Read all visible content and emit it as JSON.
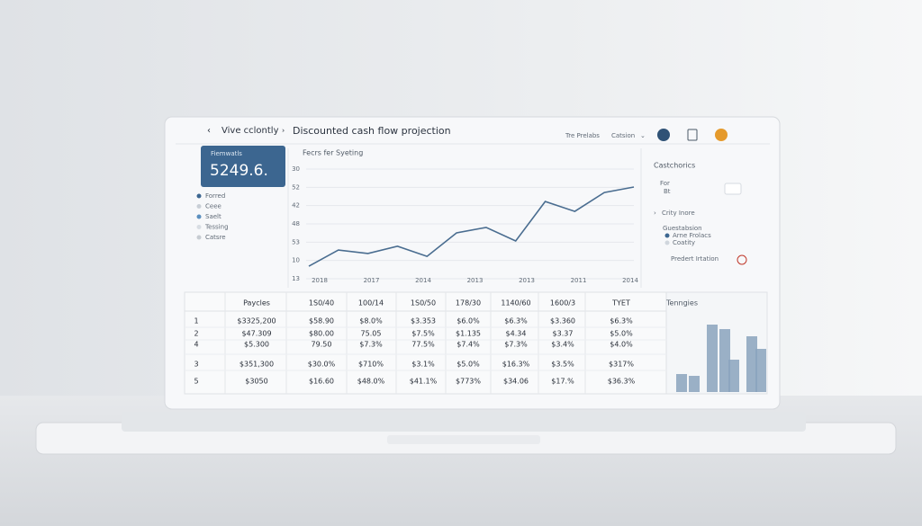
{
  "header": {
    "breadcrumb": "Vive cclontly",
    "title": "Discounted cash flow projection",
    "action_1": "Tre Prelabs",
    "action_2": "Catsion"
  },
  "summary_card": {
    "label": "Fiemwatls",
    "value": "5249.6."
  },
  "legend": [
    "Forred",
    "Ceee",
    "Saelt",
    "Tessing",
    "Catsre"
  ],
  "chart_data": {
    "type": "line",
    "title": "Fecrs fer Syeting",
    "y_labels": [
      "30",
      "52",
      "42",
      "48",
      "53",
      "10",
      "13"
    ],
    "x_labels": [
      "2018",
      "2017",
      "2014",
      "2013",
      "2013",
      "2011",
      "2014"
    ],
    "values": [
      5.7,
      13.1,
      11.5,
      14.8,
      10.2,
      20.9,
      23.4,
      17.2,
      35.2,
      30.7,
      39.3,
      41.8
    ],
    "ylim": [
      0,
      50
    ],
    "color": "#4a6d90"
  },
  "side_panel": {
    "title": "Castchorics",
    "field_1": "For",
    "field_2": "Bt",
    "option": "Crity Inore",
    "group_title": "Guestabsion",
    "group_items": [
      "Arne Frolacs",
      "Coatity"
    ],
    "footer": "Predert Irtation"
  },
  "table": {
    "header": [
      "Paycles",
      "1S0/40",
      "100/14",
      "1S0/50",
      "178/30",
      "1140/60",
      "1600/3",
      "TYET"
    ],
    "rows": [
      [
        "1",
        "$3325,200",
        "$58.90",
        "$8.0%",
        "$3.353",
        "$6.0%",
        "$6.3%",
        "$3.360",
        "$6.3%"
      ],
      [
        "2",
        "$47.309",
        "$80.00",
        "75.05",
        "$7.5%",
        "$1.135",
        "$4.34",
        "$3.37",
        "$5.0%"
      ],
      [
        "4",
        "$5.300",
        "79.50",
        "$7.3%",
        "77.5%",
        "$7.4%",
        "$7.3%",
        "$3.4%",
        "$4.0%"
      ],
      [
        "3",
        "$351,300",
        "$30.0%",
        "$710%",
        "$3.1%",
        "$5.0%",
        "$16.3%",
        "$3.5%",
        "$317%"
      ],
      [
        "5",
        "$3050",
        "$16.60",
        "$48.0%",
        "$41.1%",
        "$773%",
        "$34.06",
        "$17.%",
        "$36.3%"
      ]
    ]
  },
  "mini_chart": {
    "type": "bar",
    "title": "Tenngies",
    "values": [
      20,
      18,
      75,
      70,
      36,
      62,
      48
    ],
    "ylim": [
      0,
      80
    ],
    "color": "#8aa3bd"
  }
}
